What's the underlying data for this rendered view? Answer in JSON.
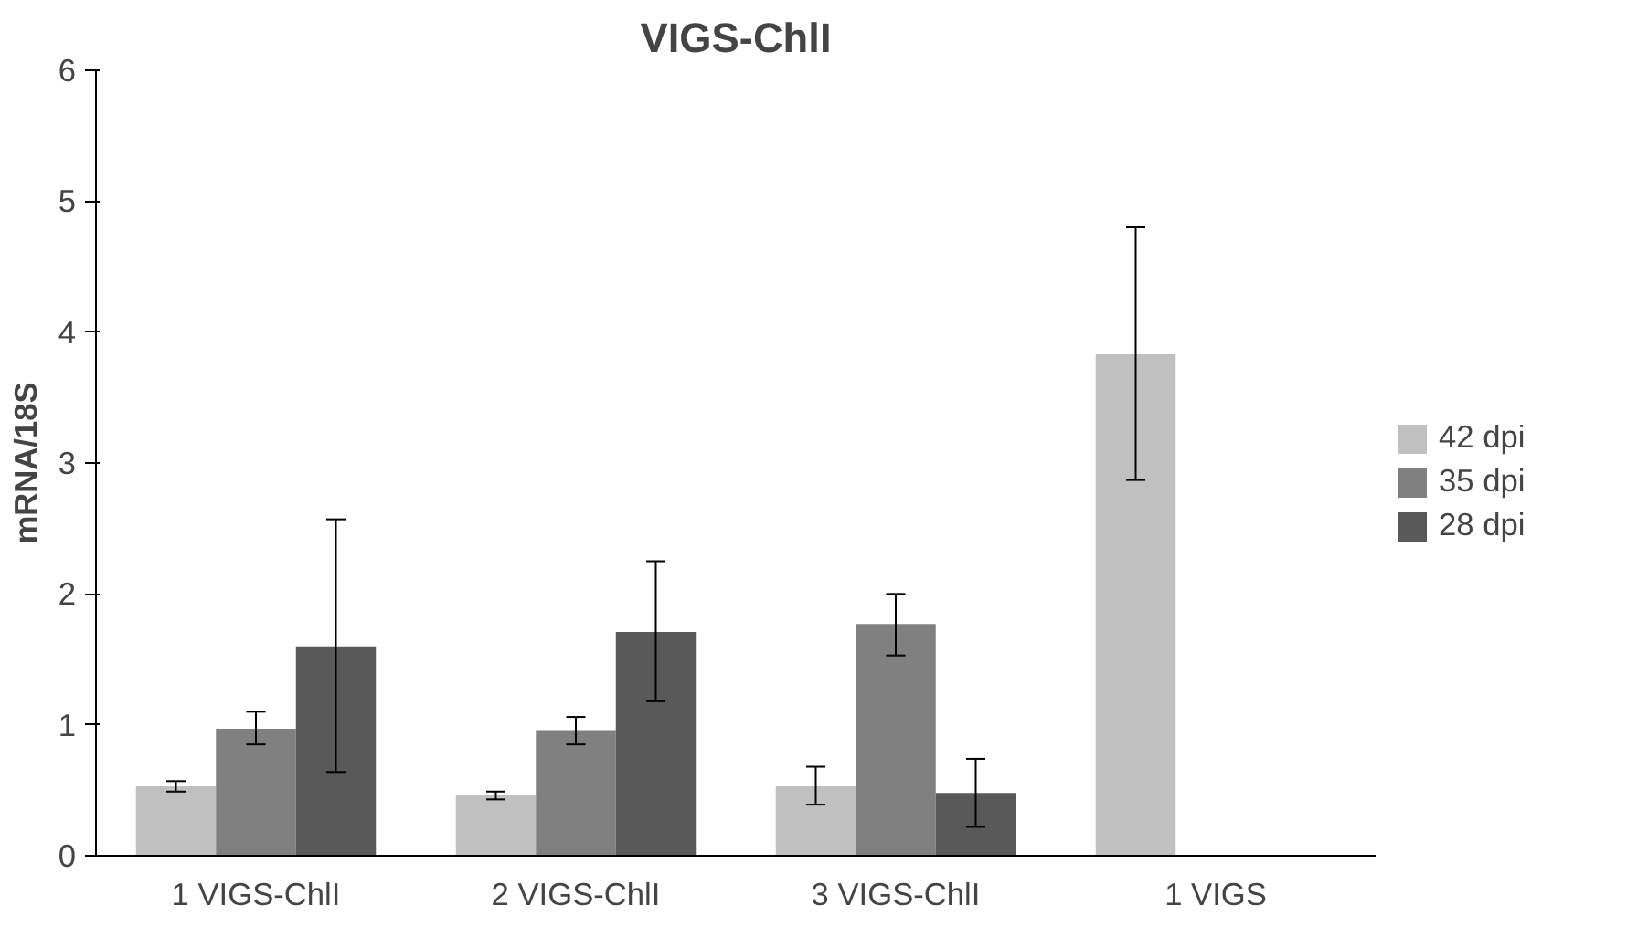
{
  "chart_data": {
    "type": "bar",
    "title": "VIGS-ChlI",
    "ylabel": "mRNA/18S",
    "categories": [
      "1 VIGS-ChlI",
      "2 VIGS-ChlI",
      "3 VIGS-ChlI",
      "1 VIGS"
    ],
    "series": [
      {
        "name": "42 dpi",
        "color": "#c0c0c0",
        "values": [
          0.53,
          0.46,
          0.53,
          3.83
        ],
        "errors": [
          [
            0.49,
            0.57
          ],
          [
            0.43,
            0.49
          ],
          [
            0.39,
            0.68
          ],
          [
            2.87,
            4.8
          ]
        ]
      },
      {
        "name": "35 dpi",
        "color": "#808080",
        "values": [
          0.97,
          0.96,
          1.77,
          null
        ],
        "errors": [
          [
            0.85,
            1.1
          ],
          [
            0.85,
            1.06
          ],
          [
            1.53,
            2.0
          ],
          null
        ]
      },
      {
        "name": "28 dpi",
        "color": "#595959",
        "values": [
          1.6,
          1.71,
          0.48,
          null
        ],
        "errors": [
          [
            0.64,
            2.57
          ],
          [
            1.18,
            2.25
          ],
          [
            0.22,
            0.74
          ],
          null
        ]
      }
    ],
    "ylim": [
      0,
      6
    ],
    "yticks": [
      0,
      1,
      2,
      3,
      4,
      5,
      6
    ],
    "grid": false,
    "legend": "right"
  }
}
